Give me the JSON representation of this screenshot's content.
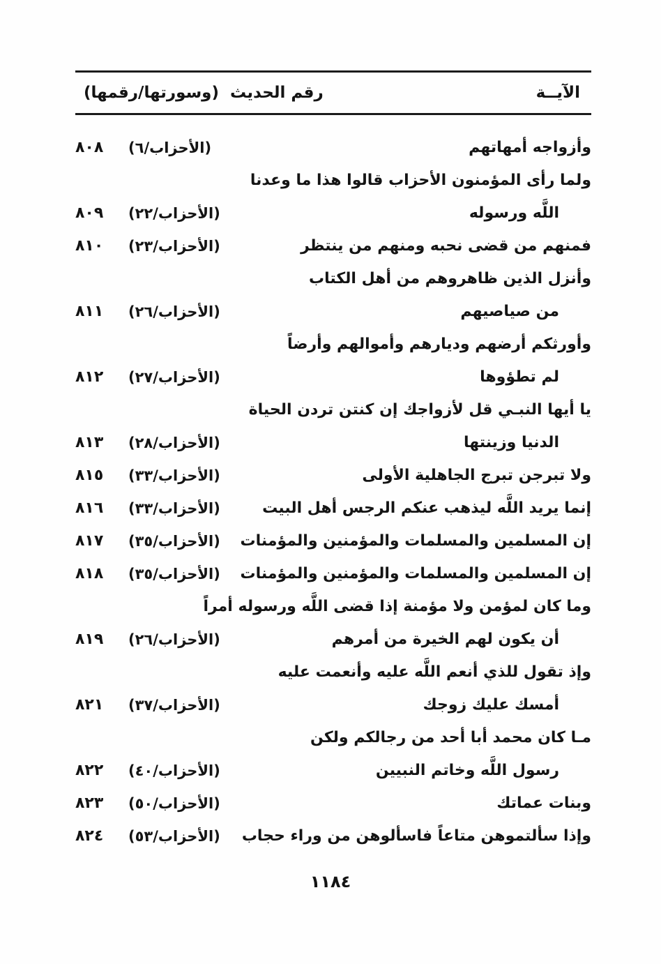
{
  "header": {
    "verse_label": "الآيــة",
    "ref_label": "(وسورتها/رقمها)",
    "hadith_label": "رقم الحديث"
  },
  "rows": [
    {
      "verse": "وأزواجه أمهاتهم",
      "ref": "(الأحزاب/٦)",
      "num": "٨٠٨",
      "indent": false
    },
    {
      "verse": "ولما رأى المؤمنون الأحزاب قالوا هذا ما وعدنا",
      "ref": "",
      "num": "",
      "indent": false
    },
    {
      "verse": "اللَّه ورسوله",
      "ref": "(الأحزاب/٢٢)",
      "num": "٨٠٩",
      "indent": true
    },
    {
      "verse": "فمنهم من قضى نحبه ومنهم من ينتظر",
      "ref": "(الأحزاب/٢٣)",
      "num": "٨١٠",
      "indent": false
    },
    {
      "verse": "وأنزل الذين ظاهروهم من أهل الكتاب",
      "ref": "",
      "num": "",
      "indent": false
    },
    {
      "verse": "من صياصيهم",
      "ref": "(الأحزاب/٢٦)",
      "num": "٨١١",
      "indent": true
    },
    {
      "verse": "وأورثكم أرضهم وديارهم وأموالهم وأرضاً",
      "ref": "",
      "num": "",
      "indent": false
    },
    {
      "verse": "لم تطؤوها",
      "ref": "(الأحزاب/٢٧)",
      "num": "٨١٢",
      "indent": true
    },
    {
      "verse": "يا أيها النبـي قل لأزواجك إن كنتن تردن الحياة",
      "ref": "",
      "num": "",
      "indent": false
    },
    {
      "verse": "الدنيا وزينتها",
      "ref": "(الأحزاب/٢٨)",
      "num": "٨١٣",
      "indent": true
    },
    {
      "verse": "ولا تبرجن تبرج الجاهلية الأولى",
      "ref": "(الأحزاب/٣٣)",
      "num": "٨١٥",
      "indent": false
    },
    {
      "verse": "إنما يريد اللَّه ليذهب عنكم الرجس أهل البيت",
      "ref": "(الأحزاب/٣٣)",
      "num": "٨١٦",
      "indent": false
    },
    {
      "verse": "إن المسلمين والمسلمات والمؤمنين والمؤمنات",
      "ref": "(الأحزاب/٣٥)",
      "num": "٨١٧",
      "indent": false
    },
    {
      "verse": "إن المسلمين والمسلمات والمؤمنين والمؤمنات",
      "ref": "(الأحزاب/٣٥)",
      "num": "٨١٨",
      "indent": false
    },
    {
      "verse": "وما كان لمؤمن ولا مؤمنة إذا قضى اللَّه ورسوله أمراً",
      "ref": "",
      "num": "",
      "indent": false
    },
    {
      "verse": "أن يكون لهم الخيرة من أمرهم",
      "ref": "(الأحزاب/٢٦)",
      "num": "٨١٩",
      "indent": true
    },
    {
      "verse": "وإذ تقول للذي أنعم اللَّه عليه وأنعمت عليه",
      "ref": "",
      "num": "",
      "indent": false
    },
    {
      "verse": "أمسك عليك زوجك",
      "ref": "(الأحزاب/٣٧)",
      "num": "٨٢١",
      "indent": true
    },
    {
      "verse": "مـا كان محمد أبا أحد من رجالكم ولكن",
      "ref": "",
      "num": "",
      "indent": false
    },
    {
      "verse": "رسول اللَّه وخاتم النبيين",
      "ref": "(الأحزاب/٤٠)",
      "num": "٨٢٢",
      "indent": true
    },
    {
      "verse": "وبنات عماتك",
      "ref": "(الأحزاب/٥٠)",
      "num": "٨٢٣",
      "indent": false
    },
    {
      "verse": "وإذا سألتموهن متاعاً فاسألوهن من وراء حجاب",
      "ref": "(الأحزاب/٥٣)",
      "num": "٨٢٤",
      "indent": false
    }
  ],
  "page": {
    "number": "١١٨٤"
  }
}
